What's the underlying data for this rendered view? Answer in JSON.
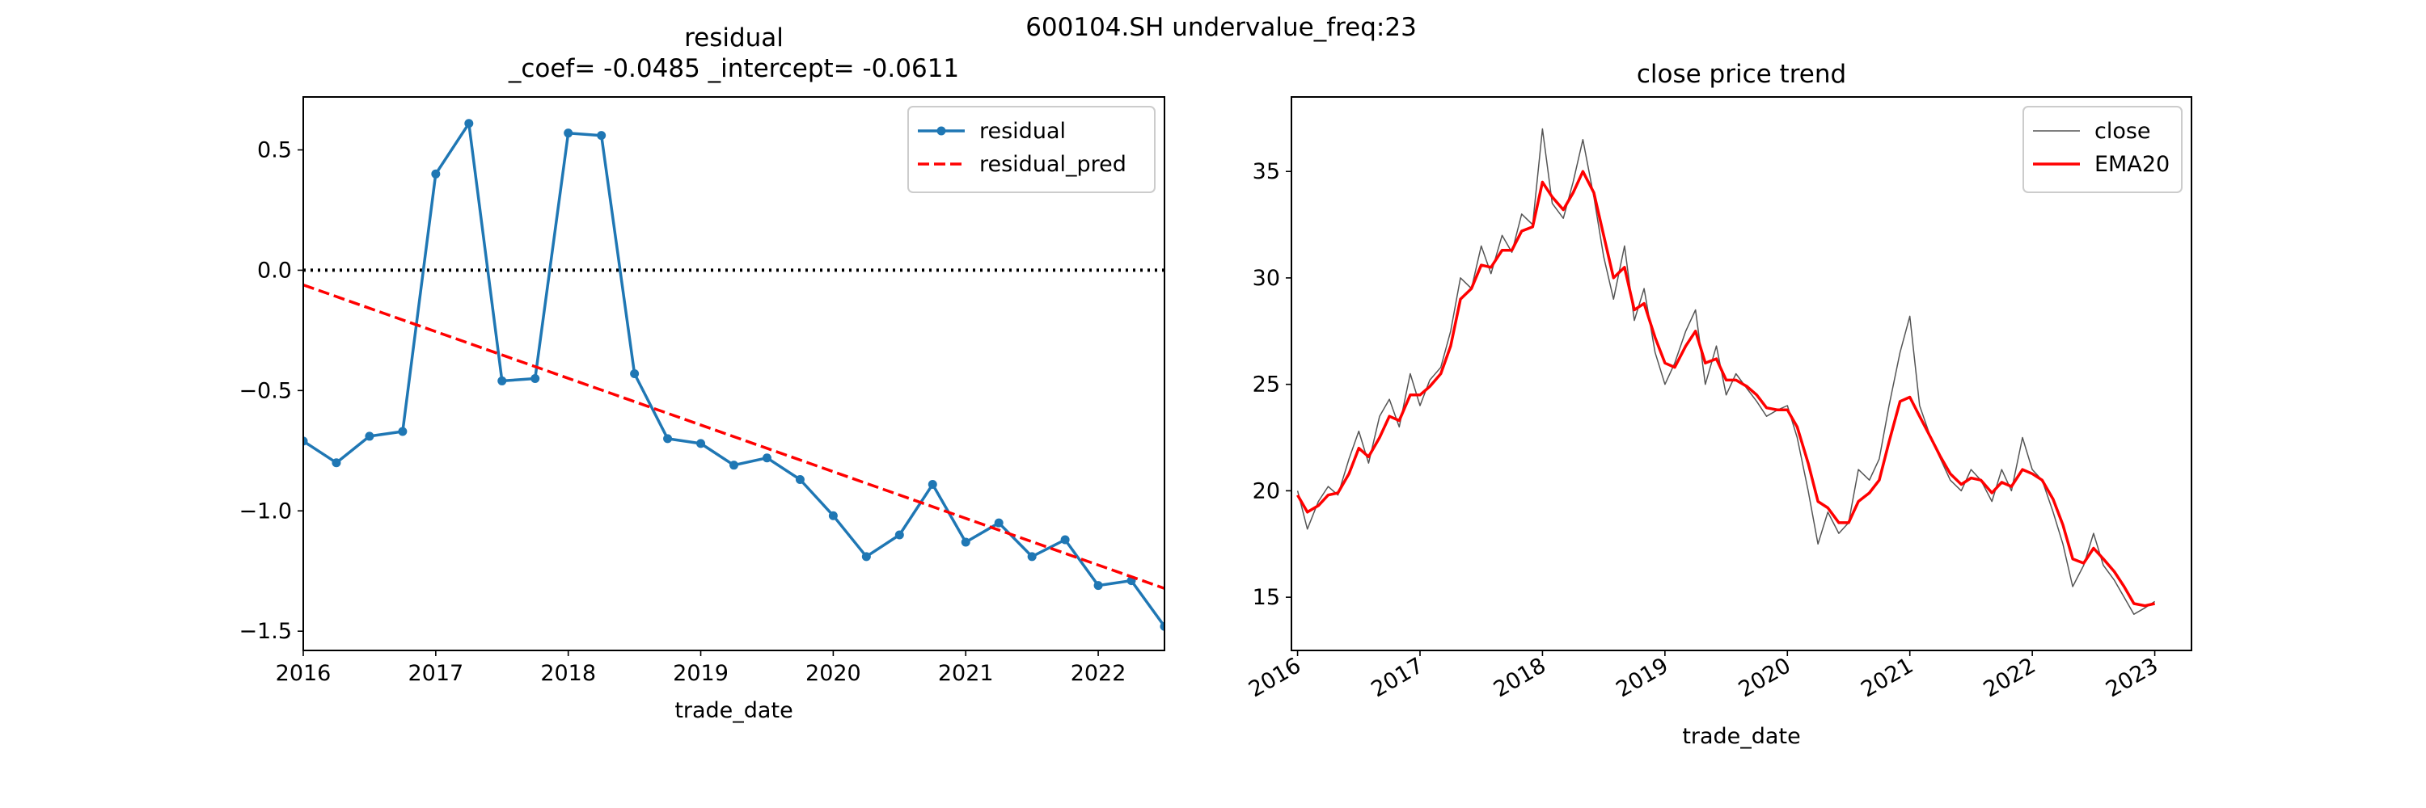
{
  "figure": {
    "suptitle": "600104.SH undervalue_freq:23"
  },
  "chart_data": [
    {
      "type": "line",
      "title": "residual",
      "subtitle": "_coef= -0.0485   _intercept= -0.0611",
      "xlabel": "trade_date",
      "ylabel": "",
      "xlim": [
        2016.0,
        2022.5
      ],
      "ylim": [
        -1.58,
        0.72
      ],
      "xticks": [
        2016,
        2017,
        2018,
        2019,
        2020,
        2021,
        2022
      ],
      "xtick_labels": [
        "2016",
        "2017",
        "2018",
        "2019",
        "2020",
        "2021",
        "2022"
      ],
      "yticks": [
        0.5,
        0.0,
        -0.5,
        -1.0,
        -1.5
      ],
      "ytick_labels": [
        "0.5",
        "0.0",
        "−0.5",
        "−1.0",
        "−1.5"
      ],
      "grid": false,
      "legend_position": "top-right",
      "reference_line": {
        "y": 0.0,
        "style": "dotted",
        "color": "#000000"
      },
      "series": [
        {
          "name": "residual",
          "color": "#1f77b4",
          "style": "solid-with-markers",
          "x": [
            2016.0,
            2016.25,
            2016.5,
            2016.75,
            2017.0,
            2017.25,
            2017.5,
            2017.75,
            2018.0,
            2018.25,
            2018.5,
            2018.75,
            2019.0,
            2019.25,
            2019.5,
            2019.75,
            2020.0,
            2020.25,
            2020.5,
            2020.75,
            2021.0,
            2021.25,
            2021.5,
            2021.75,
            2022.0,
            2022.25,
            2022.5
          ],
          "y": [
            -0.71,
            -0.8,
            -0.69,
            -0.67,
            0.4,
            0.61,
            -0.46,
            -0.45,
            0.57,
            0.56,
            -0.43,
            -0.7,
            -0.72,
            -0.81,
            -0.78,
            -0.87,
            -1.02,
            -1.19,
            -1.1,
            -0.89,
            -1.13,
            -1.05,
            -1.19,
            -1.12,
            -1.31,
            -1.29,
            -1.48
          ]
        },
        {
          "name": "residual_pred",
          "color": "#ff0000",
          "style": "dashed",
          "x": [
            2016.0,
            2022.5
          ],
          "y": [
            -0.0611,
            -1.322
          ]
        }
      ]
    },
    {
      "type": "line",
      "title": "close price trend",
      "xlabel": "trade_date",
      "ylabel": "",
      "xlim": [
        2015.95,
        2023.3
      ],
      "ylim": [
        12.5,
        38.5
      ],
      "xticks": [
        2016,
        2017,
        2018,
        2019,
        2020,
        2021,
        2022,
        2023
      ],
      "xtick_labels": [
        "2016",
        "2017",
        "2018",
        "2019",
        "2020",
        "2021",
        "2022",
        "2023"
      ],
      "yticks": [
        15,
        20,
        25,
        30,
        35
      ],
      "ytick_labels": [
        "15",
        "20",
        "25",
        "30",
        "35"
      ],
      "grid": false,
      "legend_position": "top-right",
      "series": [
        {
          "name": "close",
          "color": "#555555",
          "style": "thin-solid",
          "x": [
            2016.0,
            2016.08,
            2016.17,
            2016.25,
            2016.33,
            2016.42,
            2016.5,
            2016.58,
            2016.67,
            2016.75,
            2016.83,
            2016.92,
            2017.0,
            2017.08,
            2017.17,
            2017.25,
            2017.33,
            2017.42,
            2017.5,
            2017.58,
            2017.67,
            2017.75,
            2017.83,
            2017.92,
            2018.0,
            2018.08,
            2018.17,
            2018.25,
            2018.33,
            2018.42,
            2018.5,
            2018.58,
            2018.67,
            2018.75,
            2018.83,
            2018.92,
            2019.0,
            2019.08,
            2019.17,
            2019.25,
            2019.33,
            2019.42,
            2019.5,
            2019.58,
            2019.67,
            2019.75,
            2019.83,
            2019.92,
            2020.0,
            2020.08,
            2020.17,
            2020.25,
            2020.33,
            2020.42,
            2020.5,
            2020.58,
            2020.67,
            2020.75,
            2020.83,
            2020.92,
            2021.0,
            2021.08,
            2021.17,
            2021.25,
            2021.33,
            2021.42,
            2021.5,
            2021.58,
            2021.67,
            2021.75,
            2021.83,
            2021.92,
            2022.0,
            2022.08,
            2022.17,
            2022.25,
            2022.33,
            2022.42,
            2022.5,
            2022.58,
            2022.67,
            2022.75,
            2022.83,
            2022.92,
            2023.0
          ],
          "y": [
            20.0,
            18.2,
            19.5,
            20.2,
            19.8,
            21.5,
            22.8,
            21.3,
            23.5,
            24.3,
            23.0,
            25.5,
            24.0,
            25.2,
            25.8,
            27.5,
            30.0,
            29.5,
            31.5,
            30.2,
            32.0,
            31.2,
            33.0,
            32.5,
            37.0,
            33.5,
            32.8,
            34.5,
            36.5,
            33.8,
            31.0,
            29.0,
            31.5,
            28.0,
            29.5,
            26.5,
            25.0,
            26.0,
            27.5,
            28.5,
            25.0,
            26.8,
            24.5,
            25.5,
            24.8,
            24.2,
            23.5,
            23.8,
            24.0,
            22.5,
            20.0,
            17.5,
            19.0,
            18.0,
            18.5,
            21.0,
            20.5,
            21.5,
            24.0,
            26.5,
            28.2,
            24.0,
            22.5,
            21.5,
            20.5,
            20.0,
            21.0,
            20.5,
            19.5,
            21.0,
            20.0,
            22.5,
            21.0,
            20.5,
            19.0,
            17.5,
            15.5,
            16.5,
            18.0,
            16.5,
            15.8,
            15.0,
            14.2,
            14.5,
            14.8
          ]
        },
        {
          "name": "EMA20",
          "color": "#ff0000",
          "style": "solid",
          "x": [
            2016.0,
            2016.08,
            2016.17,
            2016.25,
            2016.33,
            2016.42,
            2016.5,
            2016.58,
            2016.67,
            2016.75,
            2016.83,
            2016.92,
            2017.0,
            2017.08,
            2017.17,
            2017.25,
            2017.33,
            2017.42,
            2017.5,
            2017.58,
            2017.67,
            2017.75,
            2017.83,
            2017.92,
            2018.0,
            2018.08,
            2018.17,
            2018.25,
            2018.33,
            2018.42,
            2018.5,
            2018.58,
            2018.67,
            2018.75,
            2018.83,
            2018.92,
            2019.0,
            2019.08,
            2019.17,
            2019.25,
            2019.33,
            2019.42,
            2019.5,
            2019.58,
            2019.67,
            2019.75,
            2019.83,
            2019.92,
            2020.0,
            2020.08,
            2020.17,
            2020.25,
            2020.33,
            2020.42,
            2020.5,
            2020.58,
            2020.67,
            2020.75,
            2020.83,
            2020.92,
            2021.0,
            2021.08,
            2021.17,
            2021.25,
            2021.33,
            2021.42,
            2021.5,
            2021.58,
            2021.67,
            2021.75,
            2021.83,
            2021.92,
            2022.0,
            2022.08,
            2022.17,
            2022.25,
            2022.33,
            2022.42,
            2022.5,
            2022.58,
            2022.67,
            2022.75,
            2022.83,
            2022.92,
            2023.0
          ],
          "y": [
            19.8,
            19.0,
            19.3,
            19.8,
            19.9,
            20.8,
            22.0,
            21.6,
            22.5,
            23.5,
            23.3,
            24.5,
            24.5,
            24.9,
            25.5,
            26.8,
            29.0,
            29.5,
            30.6,
            30.5,
            31.3,
            31.3,
            32.2,
            32.4,
            34.5,
            33.8,
            33.2,
            34.0,
            35.0,
            34.0,
            32.0,
            30.0,
            30.5,
            28.5,
            28.8,
            27.2,
            26.0,
            25.8,
            26.8,
            27.5,
            26.0,
            26.2,
            25.2,
            25.2,
            24.9,
            24.5,
            23.9,
            23.8,
            23.8,
            23.0,
            21.3,
            19.5,
            19.2,
            18.5,
            18.5,
            19.5,
            19.9,
            20.5,
            22.3,
            24.2,
            24.4,
            23.5,
            22.5,
            21.6,
            20.8,
            20.3,
            20.6,
            20.5,
            19.9,
            20.4,
            20.2,
            21.0,
            20.8,
            20.5,
            19.6,
            18.4,
            16.8,
            16.6,
            17.3,
            16.8,
            16.2,
            15.5,
            14.7,
            14.6,
            14.7
          ]
        }
      ]
    }
  ]
}
